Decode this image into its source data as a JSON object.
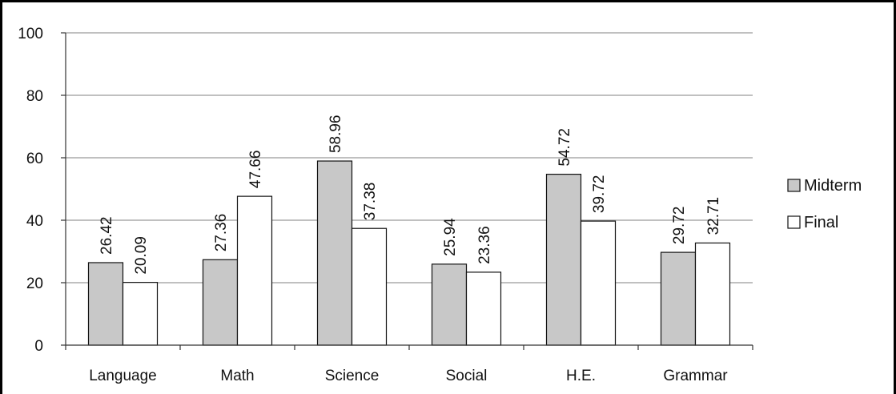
{
  "chart_data": {
    "type": "bar",
    "title": "",
    "xlabel": "",
    "ylabel": "",
    "categories": [
      "Language",
      "Math",
      "Science",
      "Social",
      "H.E.",
      "Grammar"
    ],
    "series": [
      {
        "name": "Midterm",
        "values": [
          26.42,
          27.36,
          58.96,
          25.94,
          54.72,
          29.72
        ],
        "color": "#c8c8c8"
      },
      {
        "name": "Final",
        "values": [
          20.09,
          47.66,
          37.38,
          23.36,
          39.72,
          32.71
        ],
        "color": "#ffffff"
      }
    ],
    "ylim": [
      0,
      100
    ],
    "yticks": [
      0,
      20,
      40,
      60,
      80,
      100
    ],
    "grid": true,
    "legend_position": "right"
  }
}
